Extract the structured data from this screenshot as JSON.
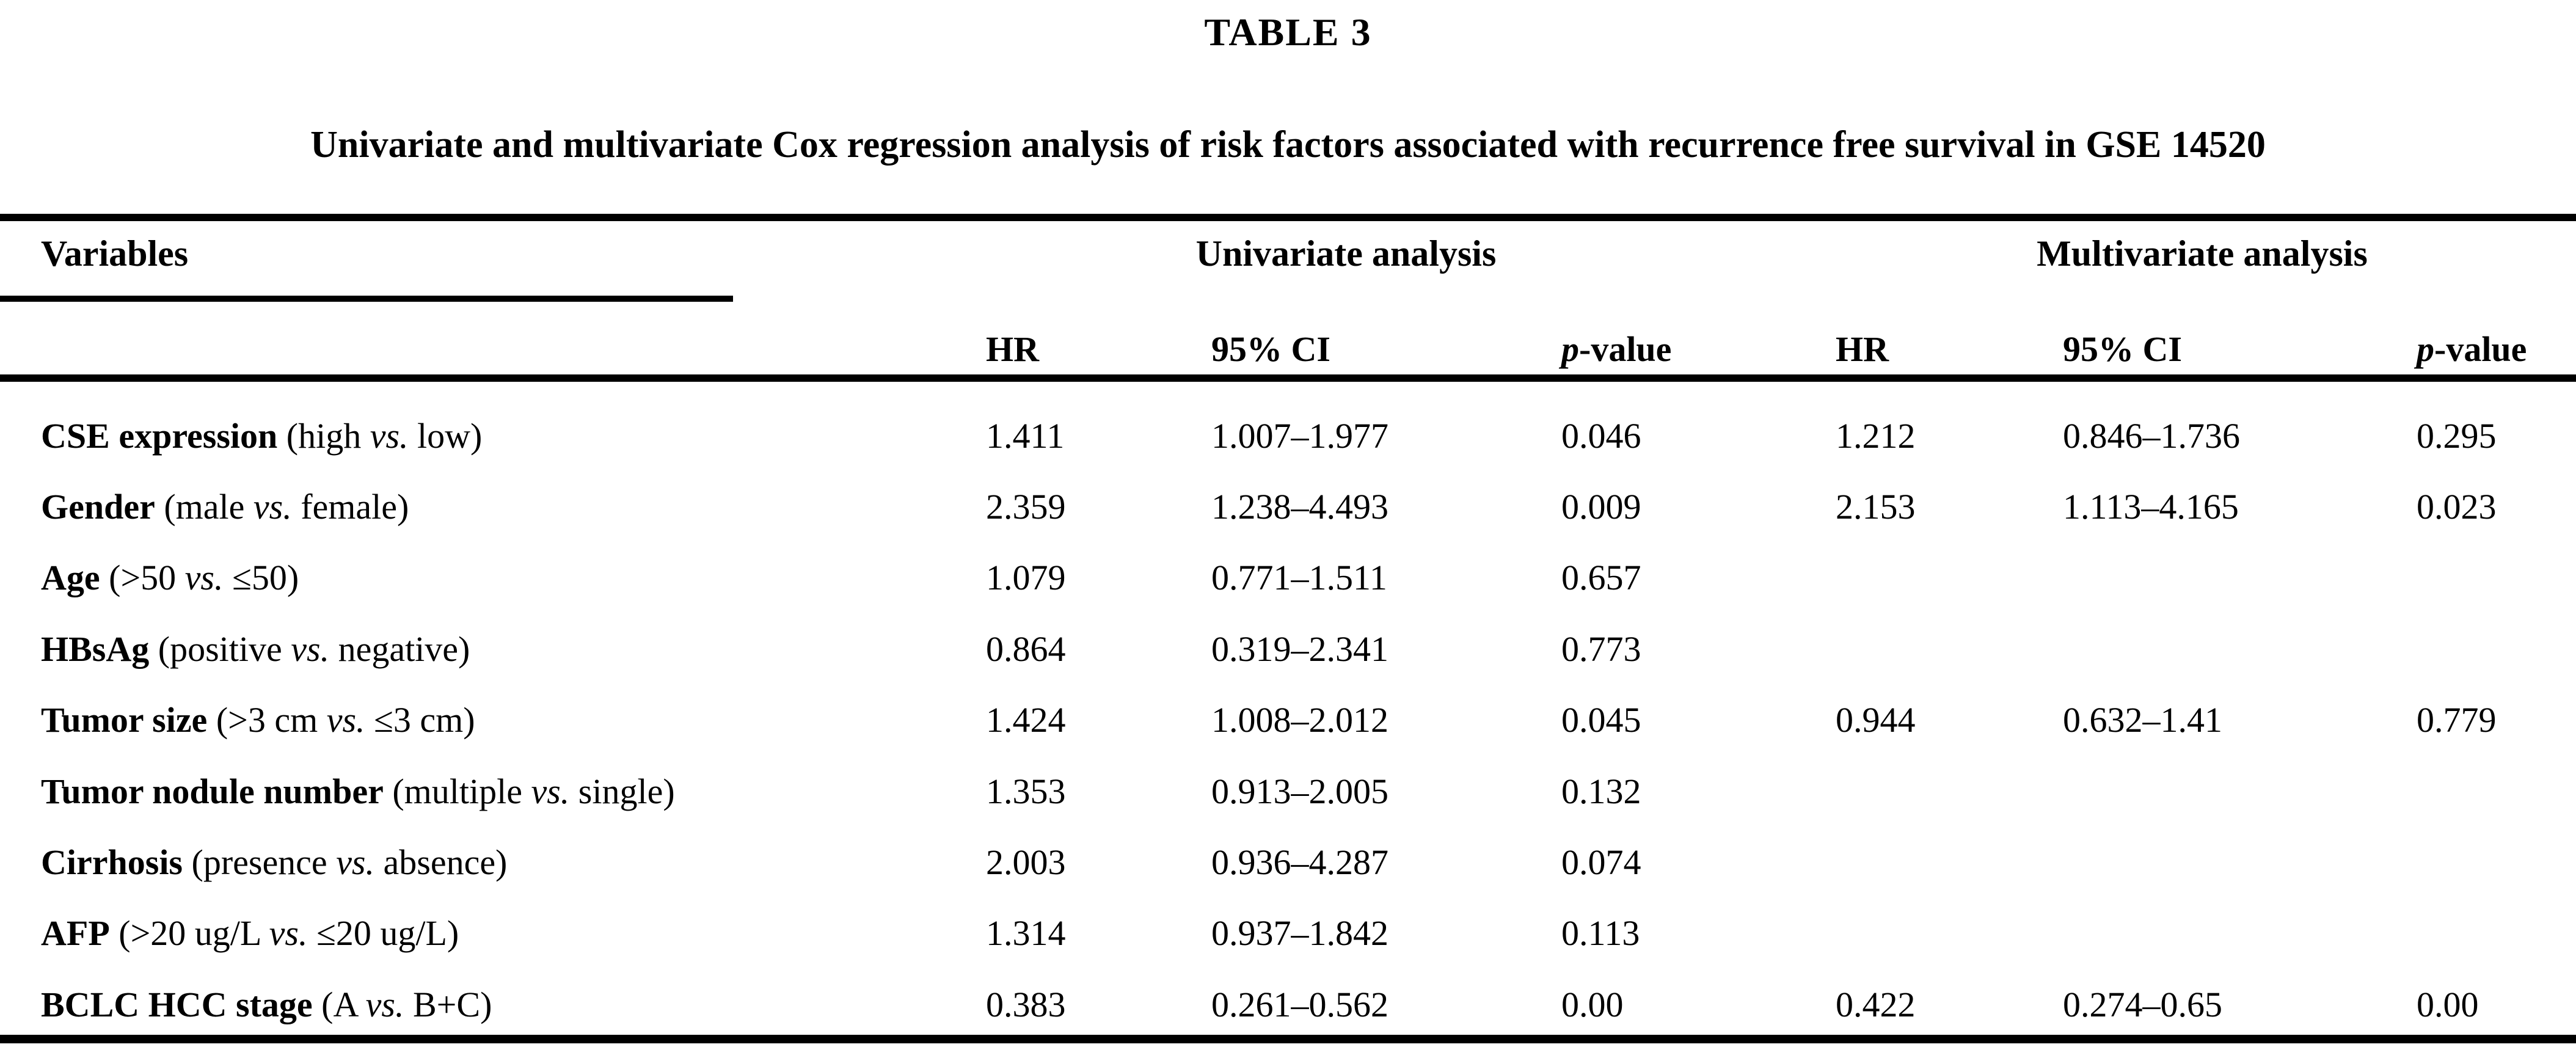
{
  "page": {
    "background": "#ffffff",
    "ink": "#000000"
  },
  "table": {
    "label": "TABLE 3",
    "caption": "Univariate and multivariate Cox regression analysis of risk factors associated with recurrence free survival in GSE 14520",
    "header": {
      "variables": "Variables",
      "group_univariate": "Univariate analysis",
      "group_multivariate": "Multivariate analysis"
    },
    "subheader": {
      "hr": "HR",
      "ci": "95% CI",
      "p_italic": "p",
      "p_rest": "-value"
    },
    "rows": [
      {
        "name": "CSE expression",
        "q_pre": "(high ",
        "q_vs": "vs.",
        "q_post": " low)",
        "uni": {
          "hr": "1.411",
          "ci": "1.007–1.977",
          "p": "0.046"
        },
        "multi": {
          "hr": "1.212",
          "ci": "0.846–1.736",
          "p": "0.295"
        }
      },
      {
        "name": "Gender",
        "q_pre": "(male ",
        "q_vs": "vs.",
        "q_post": " female)",
        "uni": {
          "hr": "2.359",
          "ci": "1.238–4.493",
          "p": "0.009"
        },
        "multi": {
          "hr": "2.153",
          "ci": "1.113–4.165",
          "p": "0.023"
        }
      },
      {
        "name": "Age",
        "q_pre": "(>50 ",
        "q_vs": "vs.",
        "q_post": " ≤50)",
        "uni": {
          "hr": "1.079",
          "ci": "0.771–1.511",
          "p": "0.657"
        },
        "multi": {
          "hr": "",
          "ci": "",
          "p": ""
        }
      },
      {
        "name": "HBsAg",
        "q_pre": "(positive ",
        "q_vs": "vs.",
        "q_post": " negative)",
        "uni": {
          "hr": "0.864",
          "ci": "0.319–2.341",
          "p": "0.773"
        },
        "multi": {
          "hr": "",
          "ci": "",
          "p": ""
        }
      },
      {
        "name": "Tumor size",
        "q_pre": "(>3 cm ",
        "q_vs": "vs.",
        "q_post": " ≤3 cm)",
        "uni": {
          "hr": "1.424",
          "ci": "1.008–2.012",
          "p": "0.045"
        },
        "multi": {
          "hr": "0.944",
          "ci": "0.632–1.41",
          "p": "0.779"
        }
      },
      {
        "name": "Tumor nodule number",
        "q_pre": "(multiple ",
        "q_vs": "vs.",
        "q_post": " single)",
        "uni": {
          "hr": "1.353",
          "ci": "0.913–2.005",
          "p": "0.132"
        },
        "multi": {
          "hr": "",
          "ci": "",
          "p": ""
        }
      },
      {
        "name": "Cirrhosis",
        "q_pre": "(presence ",
        "q_vs": "vs.",
        "q_post": " absence)",
        "uni": {
          "hr": "2.003",
          "ci": "0.936–4.287",
          "p": "0.074"
        },
        "multi": {
          "hr": "",
          "ci": "",
          "p": ""
        }
      },
      {
        "name": "AFP",
        "q_pre": "(>20 ug/L ",
        "q_vs": "vs.",
        "q_post": " ≤20 ug/L)",
        "uni": {
          "hr": "1.314",
          "ci": "0.937–1.842",
          "p": "0.113"
        },
        "multi": {
          "hr": "",
          "ci": "",
          "p": ""
        }
      },
      {
        "name": "BCLC HCC stage",
        "q_pre": "(A ",
        "q_vs": "vs.",
        "q_post": " B+C)",
        "uni": {
          "hr": "0.383",
          "ci": "0.261–0.562",
          "p": "0.00"
        },
        "multi": {
          "hr": "0.422",
          "ci": "0.274–0.65",
          "p": "0.00"
        }
      }
    ]
  }
}
